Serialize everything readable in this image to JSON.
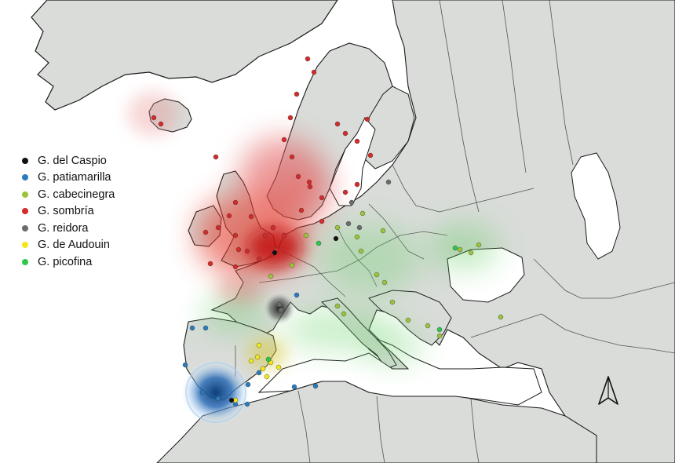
{
  "legend": {
    "items": [
      {
        "label": "G. del Caspio",
        "color": "#111111"
      },
      {
        "label": "G. patiamarilla",
        "color": "#2a7bbd"
      },
      {
        "label": "G. cabecinegra",
        "color": "#9dc33b"
      },
      {
        "label": "G. sombría",
        "color": "#d42a2a"
      },
      {
        "label": "G. reidora",
        "color": "#6b6b6b"
      },
      {
        "label": "G. de Audouin",
        "color": "#f2e81d"
      },
      {
        "label": "G. picofina",
        "color": "#2dc84a"
      }
    ]
  },
  "colors": {
    "ocean": "#ffffff",
    "land": "#d9dcd9",
    "border": "#555555",
    "coast": "#1a1a1a"
  },
  "icons": {
    "north_arrow": "north-arrow-icon"
  }
}
